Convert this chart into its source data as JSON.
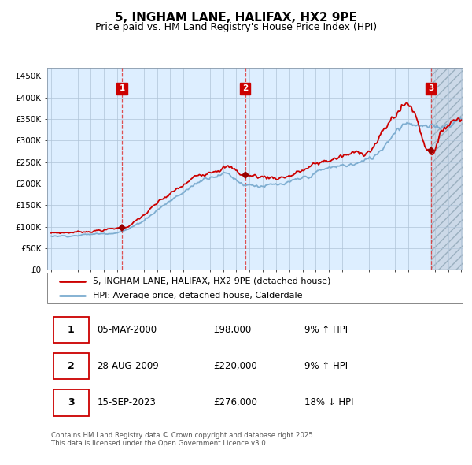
{
  "title": "5, INGHAM LANE, HALIFAX, HX2 9PE",
  "subtitle": "Price paid vs. HM Land Registry's House Price Index (HPI)",
  "title_fontsize": 11,
  "subtitle_fontsize": 9,
  "bg_color": "#ffffff",
  "plot_bg_color": "#ddeeff",
  "hatch_bg_color": "#ccd9e8",
  "grid_color": "#b0c4d8",
  "red_line_color": "#cc0000",
  "blue_line_color": "#7aabcf",
  "sale_marker_color": "#990000",
  "vline_color": "#dd3333",
  "label_box_color": "#cc0000",
  "ylim": [
    0,
    470000
  ],
  "yticks": [
    0,
    50000,
    100000,
    150000,
    200000,
    250000,
    300000,
    350000,
    400000,
    450000
  ],
  "ytick_labels": [
    "£0",
    "£50K",
    "£100K",
    "£150K",
    "£200K",
    "£250K",
    "£300K",
    "£350K",
    "£400K",
    "£450K"
  ],
  "year_start": 1995,
  "year_end": 2026,
  "sale_dates": [
    2000.35,
    2009.66,
    2023.71
  ],
  "sale_prices": [
    98000,
    220000,
    276000
  ],
  "sale_labels": [
    "1",
    "2",
    "3"
  ],
  "legend_line1": "5, INGHAM LANE, HALIFAX, HX2 9PE (detached house)",
  "legend_line2": "HPI: Average price, detached house, Calderdale",
  "table_rows": [
    [
      "1",
      "05-MAY-2000",
      "£98,000",
      "9% ↑ HPI"
    ],
    [
      "2",
      "28-AUG-2009",
      "£220,000",
      "9% ↑ HPI"
    ],
    [
      "3",
      "15-SEP-2023",
      "£276,000",
      "18% ↓ HPI"
    ]
  ],
  "footer_text": "Contains HM Land Registry data © Crown copyright and database right 2025.\nThis data is licensed under the Open Government Licence v3.0."
}
